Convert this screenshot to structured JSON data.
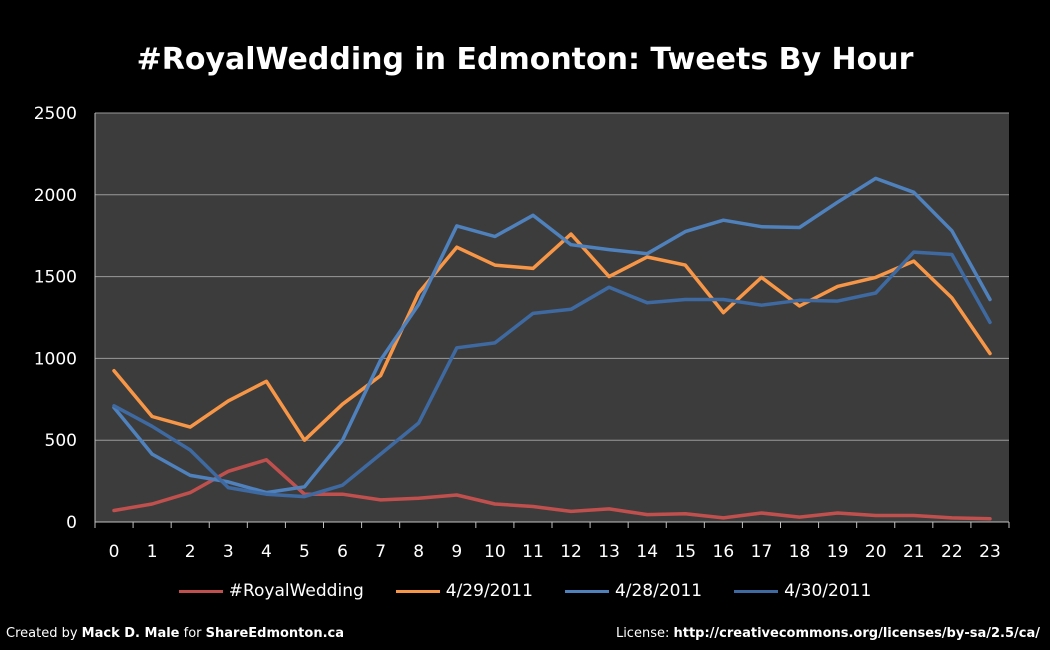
{
  "chart_data": {
    "type": "line",
    "title": "#RoyalWedding in Edmonton: Tweets By Hour",
    "x": [
      "0",
      "1",
      "2",
      "3",
      "4",
      "5",
      "6",
      "7",
      "8",
      "9",
      "10",
      "11",
      "12",
      "13",
      "14",
      "15",
      "16",
      "17",
      "18",
      "19",
      "20",
      "21",
      "22",
      "23"
    ],
    "ylim": [
      0,
      2500
    ],
    "yticks": [
      0,
      500,
      1000,
      1500,
      2000,
      2500
    ],
    "grid": true,
    "legend_position": "bottom",
    "series": [
      {
        "name": "#RoyalWedding",
        "color": "#c0504d",
        "values": [
          70,
          110,
          180,
          310,
          380,
          170,
          170,
          135,
          145,
          165,
          110,
          95,
          65,
          80,
          45,
          50,
          25,
          55,
          30,
          55,
          40,
          40,
          25,
          20
        ]
      },
      {
        "name": "4/29/2011",
        "color": "#f79646",
        "values": [
          925,
          645,
          580,
          740,
          860,
          500,
          720,
          895,
          1400,
          1680,
          1570,
          1550,
          1760,
          1500,
          1620,
          1570,
          1280,
          1495,
          1320,
          1440,
          1495,
          1595,
          1370,
          1030
        ]
      },
      {
        "name": "4/28/2011",
        "color": "#4f81bd",
        "values": [
          700,
          415,
          285,
          245,
          180,
          215,
          500,
          990,
          1330,
          1810,
          1745,
          1875,
          1695,
          1665,
          1640,
          1775,
          1845,
          1805,
          1800,
          1955,
          2100,
          2015,
          1780,
          1360
        ]
      },
      {
        "name": "4/30/2011",
        "color": "#3e6aa1",
        "values": [
          710,
          585,
          440,
          210,
          170,
          155,
          225,
          415,
          605,
          1065,
          1095,
          1275,
          1300,
          1435,
          1340,
          1360,
          1360,
          1325,
          1355,
          1350,
          1400,
          1650,
          1635,
          1220
        ]
      }
    ]
  },
  "footer": {
    "left_prefix": "Created by ",
    "left_author": "Mack D. Male",
    "left_mid": " for ",
    "left_site": "ShareEdmonton.ca",
    "right_prefix": "License: ",
    "right_url": "http://creativecommons.org/licenses/by-sa/2.5/ca/"
  }
}
